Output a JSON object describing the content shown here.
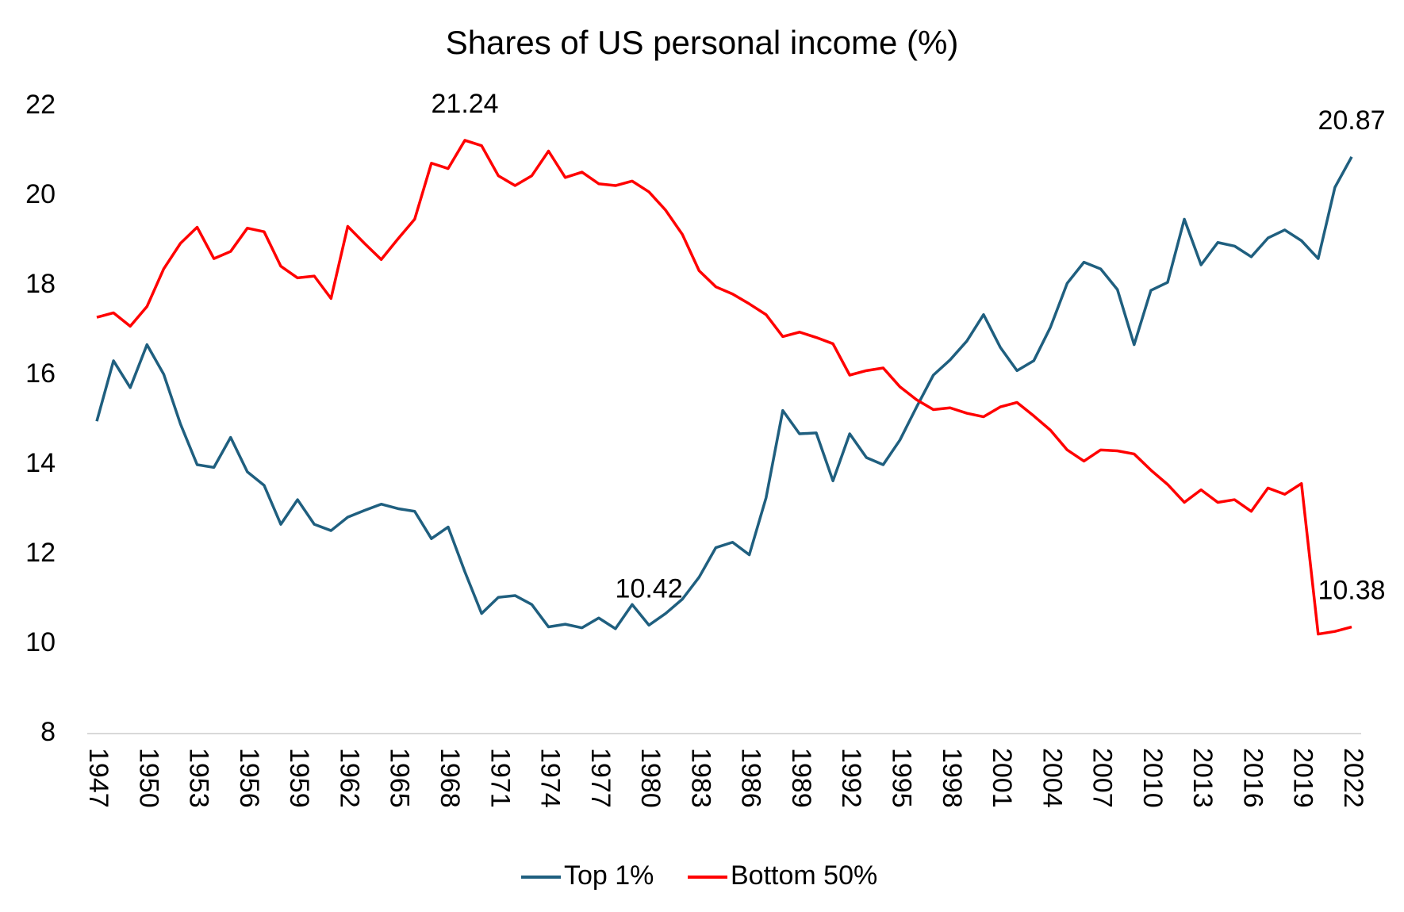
{
  "chart_data": {
    "type": "line",
    "title": "Shares of US personal income (%)",
    "x": [
      1947,
      1948,
      1949,
      1950,
      1951,
      1952,
      1953,
      1954,
      1955,
      1956,
      1957,
      1958,
      1959,
      1960,
      1961,
      1962,
      1963,
      1964,
      1965,
      1966,
      1967,
      1968,
      1969,
      1970,
      1971,
      1972,
      1973,
      1974,
      1975,
      1976,
      1977,
      1978,
      1979,
      1980,
      1981,
      1982,
      1983,
      1984,
      1985,
      1986,
      1987,
      1988,
      1989,
      1990,
      1991,
      1992,
      1993,
      1994,
      1995,
      1996,
      1997,
      1998,
      1999,
      2000,
      2001,
      2002,
      2003,
      2004,
      2005,
      2006,
      2007,
      2008,
      2009,
      2010,
      2011,
      2012,
      2013,
      2014,
      2015,
      2016,
      2017,
      2018,
      2019,
      2020,
      2021,
      2022
    ],
    "xlim": [
      1947,
      2022
    ],
    "xticks": [
      1947,
      1950,
      1953,
      1956,
      1959,
      1962,
      1965,
      1968,
      1971,
      1974,
      1977,
      1980,
      1983,
      1986,
      1989,
      1992,
      1995,
      1998,
      2001,
      2004,
      2007,
      2010,
      2013,
      2016,
      2019,
      2022
    ],
    "ylim": [
      8,
      22
    ],
    "yticks": [
      8,
      10,
      12,
      14,
      16,
      18,
      20,
      22
    ],
    "grid": false,
    "legend": "bottom",
    "series": [
      {
        "name": "Top 1%",
        "color": "#1f5f7f",
        "values": [
          14.97,
          16.32,
          15.72,
          16.68,
          16.02,
          14.91,
          14.0,
          13.94,
          14.61,
          13.84,
          13.54,
          12.67,
          13.22,
          12.67,
          12.53,
          12.83,
          12.98,
          13.12,
          13.02,
          12.96,
          12.35,
          12.61,
          11.61,
          10.68,
          11.04,
          11.08,
          10.88,
          10.38,
          10.44,
          10.36,
          10.58,
          10.34,
          10.88,
          10.42,
          10.68,
          11.0,
          11.49,
          12.15,
          12.27,
          11.99,
          13.26,
          15.21,
          14.69,
          14.71,
          13.64,
          14.69,
          14.16,
          14.0,
          14.55,
          15.29,
          16.0,
          16.34,
          16.76,
          17.35,
          16.62,
          16.1,
          16.32,
          17.07,
          18.05,
          18.52,
          18.37,
          17.91,
          16.68,
          17.89,
          18.07,
          19.48,
          18.46,
          18.96,
          18.88,
          18.64,
          19.06,
          19.24,
          19.0,
          18.6,
          20.19,
          20.87
        ],
        "value_labels": [
          null,
          null,
          null,
          null,
          null,
          null,
          null,
          null,
          null,
          null,
          null,
          null,
          null,
          null,
          null,
          null,
          null,
          null,
          null,
          null,
          null,
          null,
          null,
          null,
          null,
          null,
          null,
          null,
          null,
          null,
          null,
          null,
          null,
          "10.42",
          null,
          null,
          null,
          null,
          null,
          null,
          null,
          null,
          null,
          null,
          null,
          null,
          null,
          null,
          null,
          null,
          null,
          null,
          null,
          null,
          null,
          null,
          null,
          null,
          null,
          null,
          null,
          null,
          null,
          null,
          null,
          null,
          null,
          null,
          null,
          null,
          null,
          null,
          null,
          null,
          null,
          "20.87"
        ]
      },
      {
        "name": "Bottom 50%",
        "color": "#ff0000",
        "values": [
          17.29,
          17.39,
          17.09,
          17.53,
          18.37,
          18.94,
          19.3,
          18.6,
          18.76,
          19.28,
          19.2,
          18.43,
          18.17,
          18.21,
          17.71,
          19.32,
          18.94,
          18.58,
          19.04,
          19.48,
          20.73,
          20.61,
          21.24,
          21.12,
          20.45,
          20.23,
          20.45,
          21.0,
          20.41,
          20.53,
          20.27,
          20.23,
          20.33,
          20.09,
          19.68,
          19.14,
          18.33,
          17.97,
          17.81,
          17.59,
          17.35,
          16.86,
          16.96,
          16.84,
          16.7,
          16.0,
          16.1,
          16.16,
          15.74,
          15.45,
          15.23,
          15.27,
          15.15,
          15.07,
          15.29,
          15.39,
          15.09,
          14.77,
          14.33,
          14.08,
          14.33,
          14.31,
          14.24,
          13.88,
          13.56,
          13.16,
          13.44,
          13.16,
          13.22,
          12.96,
          13.48,
          13.34,
          13.58,
          10.22,
          10.28,
          10.38
        ],
        "value_labels": [
          null,
          null,
          null,
          null,
          null,
          null,
          null,
          null,
          null,
          null,
          null,
          null,
          null,
          null,
          null,
          null,
          null,
          null,
          null,
          null,
          null,
          null,
          "21.24",
          null,
          null,
          null,
          null,
          null,
          null,
          null,
          null,
          null,
          null,
          null,
          null,
          null,
          null,
          null,
          null,
          null,
          null,
          null,
          null,
          null,
          null,
          null,
          null,
          null,
          null,
          null,
          null,
          null,
          null,
          null,
          null,
          null,
          null,
          null,
          null,
          null,
          null,
          null,
          null,
          null,
          null,
          null,
          null,
          null,
          null,
          null,
          null,
          null,
          null,
          null,
          null,
          "10.38"
        ]
      }
    ]
  }
}
